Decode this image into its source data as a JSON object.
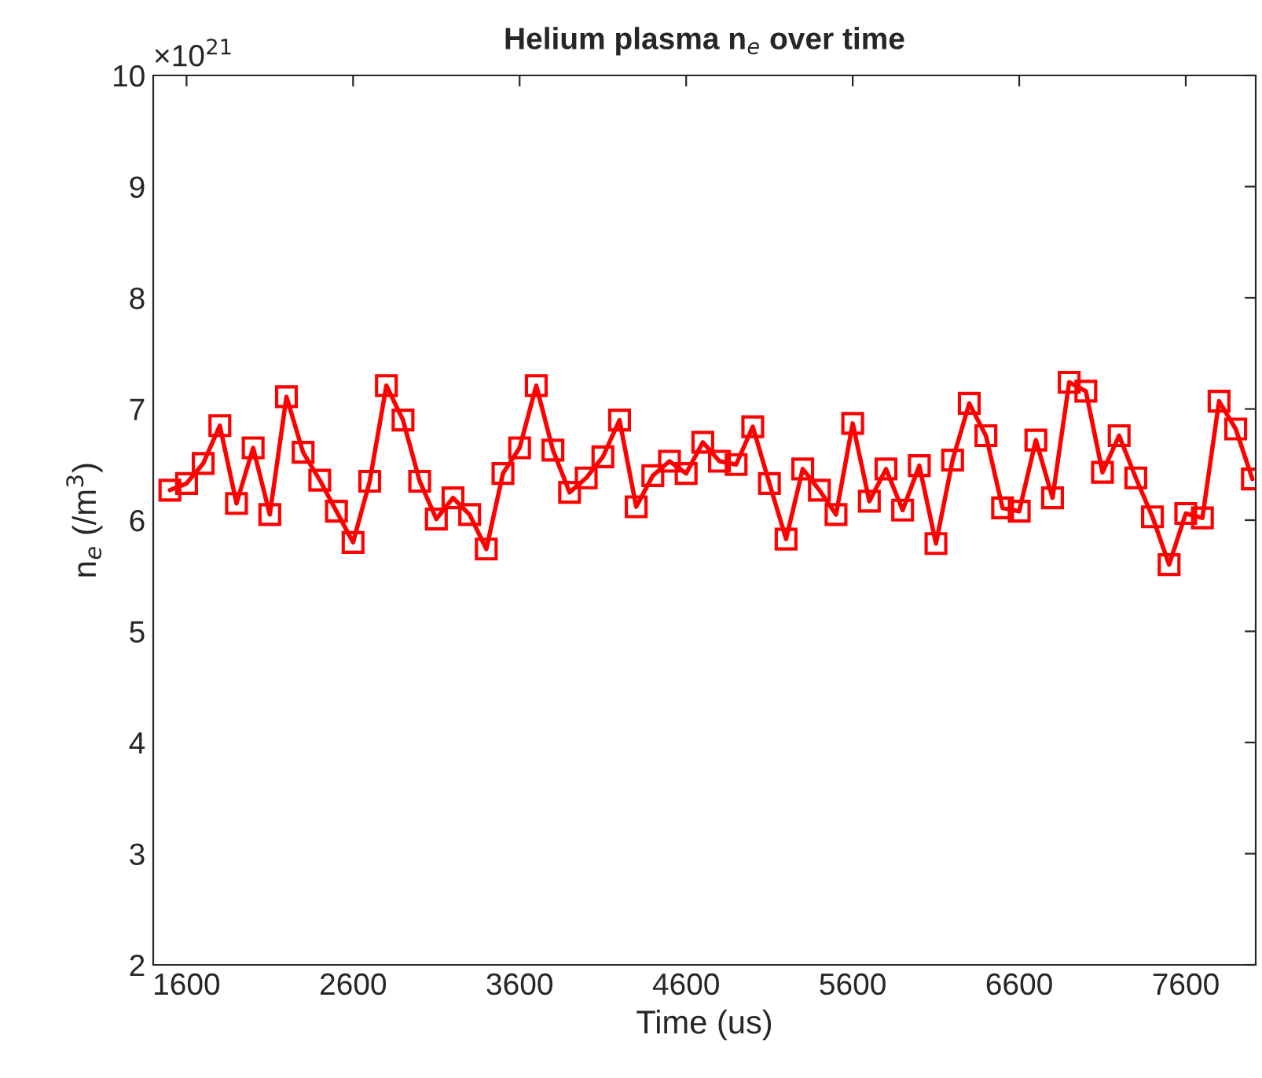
{
  "chart_data": {
    "type": "line",
    "title": "Helium plasma n$_{e}$ over time",
    "xlabel": "Time (us)",
    "ylabel": "n$_{e}$ (/m$^{3}$)",
    "annotations": [
      "×10$^{21}$"
    ],
    "x": [
      1500,
      1600,
      1700,
      1800,
      1900,
      2000,
      2100,
      2200,
      2300,
      2400,
      2500,
      2600,
      2700,
      2800,
      2900,
      3000,
      3100,
      3200,
      3300,
      3400,
      3500,
      3600,
      3700,
      3800,
      3900,
      4000,
      4100,
      4200,
      4300,
      4400,
      4500,
      4600,
      4700,
      4800,
      4900,
      5000,
      5100,
      5200,
      5300,
      5400,
      5500,
      5600,
      5700,
      5800,
      5900,
      6000,
      6100,
      6200,
      6300,
      6400,
      6500,
      6600,
      6700,
      6800,
      6900,
      7000,
      7100,
      7200,
      7300,
      7400,
      7500,
      7600,
      7700,
      7800,
      7900,
      8000
    ],
    "series": [
      {
        "color": "#ff0000",
        "values": [
          6.27,
          6.33,
          6.51,
          6.85,
          6.15,
          6.65,
          6.05,
          7.11,
          6.61,
          6.36,
          6.08,
          5.8,
          6.35,
          7.21,
          6.9,
          6.35,
          6.01,
          6.2,
          6.05,
          5.74,
          6.42,
          6.65,
          7.21,
          6.63,
          6.25,
          6.38,
          6.57,
          6.9,
          6.12,
          6.4,
          6.53,
          6.42,
          6.7,
          6.53,
          6.5,
          6.84,
          6.33,
          5.83,
          6.46,
          6.27,
          6.05,
          6.87,
          6.17,
          6.46,
          6.09,
          6.49,
          5.79,
          6.54,
          7.05,
          6.76,
          6.11,
          6.08,
          6.72,
          6.2,
          7.24,
          7.16,
          6.43,
          6.76,
          6.38,
          6.03,
          5.6,
          6.06,
          6.02,
          7.07,
          6.82,
          6.37
        ]
      }
    ],
    "xlim": [
      1400,
      8020
    ],
    "ylim": [
      2,
      10
    ],
    "xticks": [
      1600,
      2600,
      3600,
      4600,
      5600,
      6600,
      7600
    ],
    "yticks": [
      2,
      3,
      4,
      5,
      6,
      7,
      8,
      9,
      10
    ],
    "marker": "square",
    "line_style": "solid",
    "grid": false,
    "legend": false
  }
}
